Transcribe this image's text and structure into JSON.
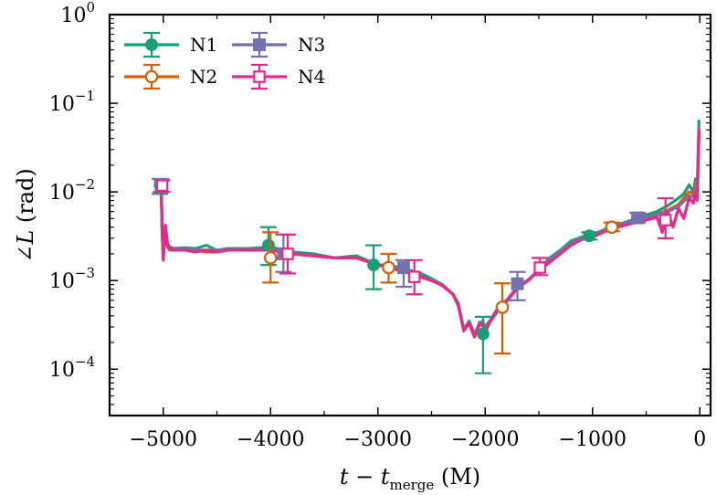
{
  "chart_data": {
    "type": "line",
    "xlabel_main": "t − t",
    "xlabel_sub": "merge",
    "xlabel_unit": " (M)",
    "ylabel_main": "∠L",
    "ylabel_unit": " (rad)",
    "xlim": [
      -5500,
      100
    ],
    "ylim": [
      3e-05,
      1
    ],
    "yscale": "log",
    "xticks": [
      {
        "value": -5000,
        "label": "−5000"
      },
      {
        "value": -4000,
        "label": "−4000"
      },
      {
        "value": -3000,
        "label": "−3000"
      },
      {
        "value": -2000,
        "label": "−2000"
      },
      {
        "value": -1000,
        "label": "−1000"
      },
      {
        "value": 0,
        "label": "0"
      }
    ],
    "yticks": [
      {
        "value": 1,
        "base": "10",
        "exp": "0"
      },
      {
        "value": 0.1,
        "base": "10",
        "exp": "−1"
      },
      {
        "value": 0.01,
        "base": "10",
        "exp": "−2"
      },
      {
        "value": 0.001,
        "base": "10",
        "exp": "−3"
      },
      {
        "value": 0.0001,
        "base": "10",
        "exp": "−4"
      }
    ],
    "legend_position": "top-left",
    "series": [
      {
        "name": "N1",
        "color": "#1b9e77",
        "marker": "filled-circle",
        "x": [
          -5030,
          -5020,
          -5010,
          -5000,
          -4990,
          -4980,
          -4960,
          -4940,
          -4900,
          -4800,
          -4700,
          -4600,
          -4500,
          -4400,
          -4200,
          -4000,
          -3800,
          -3600,
          -3400,
          -3200,
          -3000,
          -2900,
          -2800,
          -2700,
          -2600,
          -2500,
          -2400,
          -2300,
          -2250,
          -2200,
          -2150,
          -2100,
          -2050,
          -2020,
          -2000,
          -1950,
          -1900,
          -1850,
          -1800,
          -1700,
          -1600,
          -1500,
          -1400,
          -1300,
          -1200,
          -1100,
          -1000,
          -900,
          -800,
          -700,
          -600,
          -500,
          -400,
          -300,
          -200,
          -150,
          -100,
          -60,
          -40,
          -25,
          -15,
          -8
        ],
        "y": [
          0.012,
          0.013,
          0.0035,
          0.0018,
          0.0028,
          0.0042,
          0.0026,
          0.0024,
          0.0023,
          0.00235,
          0.0023,
          0.0025,
          0.0022,
          0.0023,
          0.0023,
          0.0024,
          0.0021,
          0.002,
          0.0018,
          0.0019,
          0.0015,
          0.0015,
          0.0014,
          0.0013,
          0.0012,
          0.00105,
          0.0009,
          0.0007,
          0.00055,
          0.00028,
          0.00035,
          0.00025,
          0.00032,
          0.00035,
          0.00026,
          0.00035,
          0.00042,
          0.00055,
          0.0006,
          0.00085,
          0.001,
          0.00135,
          0.0018,
          0.0022,
          0.0028,
          0.0031,
          0.0033,
          0.0037,
          0.0042,
          0.0045,
          0.005,
          0.0055,
          0.006,
          0.007,
          0.0085,
          0.0095,
          0.012,
          0.01,
          0.014,
          0.0095,
          0.03,
          0.065
        ],
        "errorbars": [
          {
            "x": -5030,
            "y": 0.012,
            "lo": 0.0095,
            "hi": 0.014
          },
          {
            "x": -4020,
            "y": 0.0025,
            "lo": 0.0015,
            "hi": 0.004
          },
          {
            "x": -3040,
            "y": 0.0015,
            "lo": 0.0008,
            "hi": 0.0025
          },
          {
            "x": -2020,
            "y": 0.00025,
            "lo": 9e-05,
            "hi": 0.00039
          },
          {
            "x": -1030,
            "y": 0.0032,
            "lo": 0.0029,
            "hi": 0.0035
          }
        ]
      },
      {
        "name": "N2",
        "color": "#d95f02",
        "marker": "open-circle",
        "x": [
          -5030,
          -5020,
          -5010,
          -5000,
          -4990,
          -4980,
          -4960,
          -4940,
          -4900,
          -4800,
          -4700,
          -4600,
          -4500,
          -4400,
          -4200,
          -4000,
          -3800,
          -3600,
          -3400,
          -3200,
          -3000,
          -2900,
          -2800,
          -2700,
          -2600,
          -2500,
          -2400,
          -2300,
          -2250,
          -2200,
          -2150,
          -2100,
          -2050,
          -2000,
          -1950,
          -1900,
          -1850,
          -1800,
          -1700,
          -1600,
          -1500,
          -1400,
          -1300,
          -1200,
          -1100,
          -1000,
          -900,
          -800,
          -700,
          -600,
          -500,
          -400,
          -300,
          -200,
          -150,
          -100,
          -60,
          -40,
          -25,
          -15,
          -8
        ],
        "y": [
          0.011,
          0.012,
          0.0034,
          0.0018,
          0.0027,
          0.004,
          0.0024,
          0.0022,
          0.0022,
          0.0022,
          0.0022,
          0.0021,
          0.0021,
          0.0022,
          0.0022,
          0.0022,
          0.002,
          0.0019,
          0.0018,
          0.0018,
          0.0015,
          0.0014,
          0.0013,
          0.0012,
          0.0011,
          0.001,
          0.00088,
          0.0007,
          0.00052,
          0.00028,
          0.00033,
          0.00024,
          0.00034,
          0.0003,
          0.00036,
          0.00045,
          0.00052,
          0.0006,
          0.00083,
          0.001,
          0.0013,
          0.0017,
          0.0021,
          0.0026,
          0.003,
          0.0032,
          0.0036,
          0.004,
          0.0043,
          0.0047,
          0.0052,
          0.0056,
          0.0062,
          0.0072,
          0.0085,
          0.01,
          0.0095,
          0.012,
          0.009,
          0.025,
          0.05
        ],
        "errorbars": [
          {
            "x": -4000,
            "y": 0.0018,
            "lo": 0.00095,
            "hi": 0.0035
          },
          {
            "x": -2900,
            "y": 0.0014,
            "lo": 0.00095,
            "hi": 0.002
          },
          {
            "x": -1840,
            "y": 0.0005,
            "lo": 0.00015,
            "hi": 0.00093
          },
          {
            "x": -820,
            "y": 0.004,
            "lo": 0.0036,
            "hi": 0.0045
          }
        ]
      },
      {
        "name": "N3",
        "color": "#7570b3",
        "marker": "filled-square",
        "x": [
          -5030,
          -5020,
          -5010,
          -5000,
          -4990,
          -4980,
          -4960,
          -4940,
          -4900,
          -4800,
          -4700,
          -4600,
          -4500,
          -4400,
          -4200,
          -4000,
          -3800,
          -3600,
          -3400,
          -3200,
          -3000,
          -2900,
          -2800,
          -2700,
          -2600,
          -2500,
          -2400,
          -2300,
          -2250,
          -2200,
          -2150,
          -2100,
          -2050,
          -2000,
          -1950,
          -1900,
          -1850,
          -1800,
          -1700,
          -1600,
          -1500,
          -1400,
          -1300,
          -1200,
          -1100,
          -1000,
          -900,
          -800,
          -700,
          -600,
          -500,
          -400,
          -300,
          -200,
          -150,
          -100,
          -60,
          -40,
          -25,
          -15,
          -8
        ],
        "y": [
          0.0115,
          0.0125,
          0.0035,
          0.0018,
          0.0027,
          0.0041,
          0.0025,
          0.0023,
          0.0022,
          0.0023,
          0.0022,
          0.0022,
          0.0022,
          0.0022,
          0.0022,
          0.0022,
          0.002,
          0.0019,
          0.0018,
          0.0018,
          0.0015,
          0.0014,
          0.0013,
          0.0012,
          0.0011,
          0.001,
          0.00088,
          0.0007,
          0.00052,
          0.00028,
          0.00034,
          0.00024,
          0.00034,
          0.0003,
          0.00036,
          0.00045,
          0.00052,
          0.0006,
          0.00085,
          0.00102,
          0.0013,
          0.0017,
          0.0021,
          0.0026,
          0.003,
          0.0032,
          0.0036,
          0.004,
          0.0044,
          0.0048,
          0.0052,
          0.0055,
          0.006,
          0.0068,
          0.0078,
          0.009,
          0.0088,
          0.011,
          0.0085,
          0.024,
          0.055
        ],
        "errorbars": [
          {
            "x": -5020,
            "y": 0.012,
            "lo": 0.01,
            "hi": 0.014
          },
          {
            "x": -3880,
            "y": 0.002,
            "lo": 0.00125,
            "hi": 0.0033
          },
          {
            "x": -2760,
            "y": 0.0014,
            "lo": 0.00085,
            "hi": 0.0017
          },
          {
            "x": -1700,
            "y": 0.00092,
            "lo": 0.0006,
            "hi": 0.00125
          },
          {
            "x": -580,
            "y": 0.0051,
            "lo": 0.0045,
            "hi": 0.0058
          }
        ]
      },
      {
        "name": "N4",
        "color": "#e7298a",
        "marker": "open-square",
        "x": [
          -5030,
          -5020,
          -5010,
          -5000,
          -4990,
          -4980,
          -4960,
          -4940,
          -4900,
          -4800,
          -4700,
          -4600,
          -4500,
          -4400,
          -4200,
          -4000,
          -3800,
          -3600,
          -3400,
          -3200,
          -3000,
          -2900,
          -2800,
          -2700,
          -2600,
          -2500,
          -2400,
          -2300,
          -2250,
          -2200,
          -2150,
          -2100,
          -2050,
          -2000,
          -1950,
          -1900,
          -1850,
          -1800,
          -1700,
          -1600,
          -1500,
          -1400,
          -1300,
          -1200,
          -1100,
          -1000,
          -900,
          -800,
          -700,
          -600,
          -500,
          -400,
          -350,
          -300,
          -250,
          -200,
          -150,
          -100,
          -60,
          -40,
          -25,
          -15,
          -8
        ],
        "y": [
          0.0115,
          0.0125,
          0.0036,
          0.0017,
          0.0027,
          0.0042,
          0.0025,
          0.0023,
          0.0022,
          0.0022,
          0.0021,
          0.0022,
          0.0021,
          0.0022,
          0.0022,
          0.0022,
          0.002,
          0.0019,
          0.0018,
          0.0018,
          0.0015,
          0.0014,
          0.0013,
          0.0012,
          0.0011,
          0.001,
          0.00088,
          0.0007,
          0.00052,
          0.00027,
          0.00033,
          0.00023,
          0.00033,
          0.00029,
          0.00035,
          0.00044,
          0.00051,
          0.00058,
          0.00082,
          0.001,
          0.0013,
          0.0016,
          0.002,
          0.0025,
          0.0029,
          0.0031,
          0.0035,
          0.0039,
          0.0042,
          0.0045,
          0.0048,
          0.0052,
          0.0035,
          0.006,
          0.004,
          0.0065,
          0.005,
          0.0085,
          0.0075,
          0.01,
          0.008,
          0.02,
          0.05
        ],
        "errorbars": [
          {
            "x": -5010,
            "y": 0.0118,
            "lo": 0.01,
            "hi": 0.0135
          },
          {
            "x": -3840,
            "y": 0.002,
            "lo": 0.0012,
            "hi": 0.0033
          },
          {
            "x": -2660,
            "y": 0.0011,
            "lo": 0.0007,
            "hi": 0.0017
          },
          {
            "x": -1490,
            "y": 0.0014,
            "lo": 0.00115,
            "hi": 0.0018
          },
          {
            "x": -320,
            "y": 0.0048,
            "lo": 0.003,
            "hi": 0.0085
          }
        ]
      }
    ]
  }
}
